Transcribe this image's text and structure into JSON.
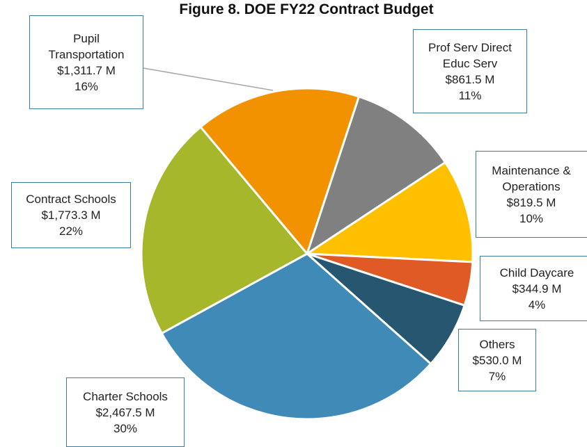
{
  "chart_data": {
    "type": "pie",
    "title": "Figure 8. DOE FY22 Contract Budget",
    "categories": [
      "Pupil Transportation",
      "Prof Serv Direct Educ Serv",
      "Maintenance & Operations",
      "Child Daycare",
      "Others",
      "Charter Schools",
      "Contract Schools"
    ],
    "values": [
      1311.7,
      861.5,
      819.5,
      344.9,
      530.0,
      2467.5,
      1773.3
    ],
    "value_labels": [
      "$1,311.7 M",
      "$861.5 M",
      "$819.5 M",
      "$344.9 M",
      "$530.0 M",
      "$2,467.5 M",
      "$1,773.3 M"
    ],
    "percent_labels": [
      "16%",
      "11%",
      "10%",
      "4%",
      "7%",
      "30%",
      "22%"
    ],
    "colors": [
      "#f39200",
      "#808080",
      "#fec000",
      "#e05a26",
      "#265670",
      "#408ab8",
      "#a6b72b"
    ]
  }
}
